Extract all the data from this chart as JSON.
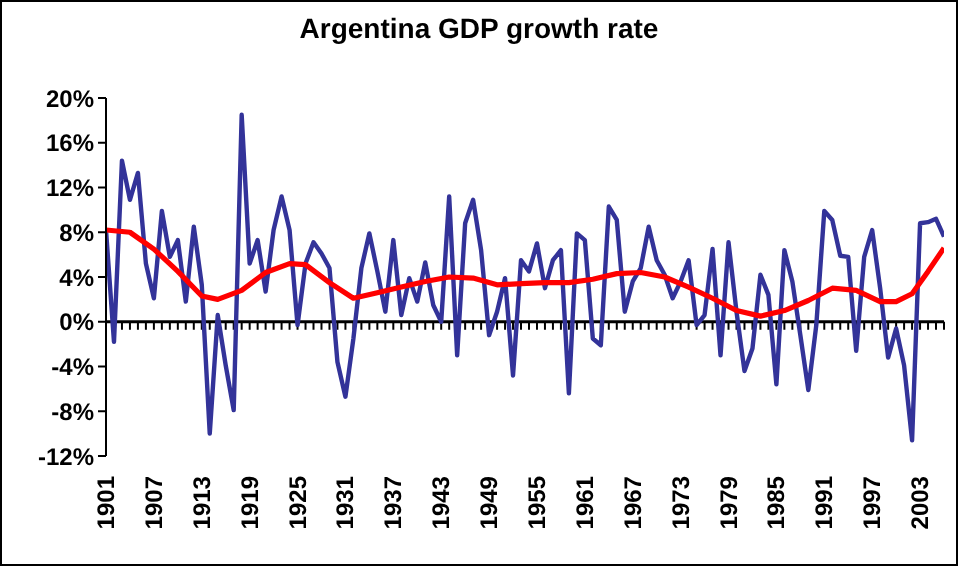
{
  "chart_data": {
    "type": "line",
    "title": "Argentina GDP growth rate",
    "x": [
      1901,
      1902,
      1903,
      1904,
      1905,
      1906,
      1907,
      1908,
      1909,
      1910,
      1911,
      1912,
      1913,
      1914,
      1915,
      1916,
      1917,
      1918,
      1919,
      1920,
      1921,
      1922,
      1923,
      1924,
      1925,
      1926,
      1927,
      1928,
      1929,
      1930,
      1931,
      1932,
      1933,
      1934,
      1935,
      1936,
      1937,
      1938,
      1939,
      1940,
      1941,
      1942,
      1943,
      1944,
      1945,
      1946,
      1947,
      1948,
      1949,
      1950,
      1951,
      1952,
      1953,
      1954,
      1955,
      1956,
      1957,
      1958,
      1959,
      1960,
      1961,
      1962,
      1963,
      1964,
      1965,
      1966,
      1967,
      1968,
      1969,
      1970,
      1971,
      1972,
      1973,
      1974,
      1975,
      1976,
      1977,
      1978,
      1979,
      1980,
      1981,
      1982,
      1983,
      1984,
      1985,
      1986,
      1987,
      1988,
      1989,
      1990,
      1991,
      1992,
      1993,
      1994,
      1995,
      1996,
      1997,
      1998,
      1999,
      2000,
      2001,
      2002,
      2003,
      2004,
      2005,
      2006
    ],
    "series": [
      {
        "color": "#333399",
        "values": [
          8.2,
          -1.8,
          14.4,
          10.9,
          13.3,
          5.2,
          2.1,
          9.9,
          5.8,
          7.3,
          1.8,
          8.5,
          3.3,
          -10,
          0.6,
          -3.9,
          -7.9,
          18.5,
          5.2,
          7.3,
          2.7,
          8.2,
          11.2,
          8.2,
          -0.3,
          5.2,
          7.1,
          6.1,
          4.8,
          -3.6,
          -6.7,
          -1.5,
          4.8,
          7.9,
          4.5,
          0.9,
          7.3,
          0.6,
          3.9,
          1.8,
          5.3,
          1.5,
          0,
          11.2,
          -3,
          8.8,
          10.9,
          6.4,
          -1.2,
          0.9,
          3.9,
          -4.8,
          5.5,
          4.5,
          7,
          3,
          5.5,
          6.4,
          -6.4,
          7.9,
          7.3,
          -1.5,
          -2.1,
          10.3,
          9.1,
          0.9,
          3.6,
          4.8,
          8.5,
          5.5,
          4.2,
          2.1,
          3.6,
          5.5,
          -0.3,
          0.6,
          6.5,
          -3,
          7.1,
          0.9,
          -4.4,
          -2.4,
          4.2,
          2.4,
          -5.6,
          6.4,
          3.6,
          -1.2,
          -6.1,
          -0.3,
          9.9,
          9.1,
          5.9,
          5.8,
          -2.6,
          5.8,
          8.2,
          3,
          -3.2,
          -0.6,
          -3.9,
          -10.6,
          8.8,
          8.9,
          9.2,
          7.6
        ]
      },
      {
        "type": "line",
        "color": "#ff0000",
        "x": [
          1901,
          1904,
          1907,
          1910,
          1913,
          1915,
          1918,
          1921,
          1924,
          1926,
          1929,
          1932,
          1935,
          1938,
          1941,
          1944,
          1947,
          1950,
          1953,
          1956,
          1959,
          1962,
          1965,
          1968,
          1971,
          1974,
          1977,
          1980,
          1983,
          1986,
          1989,
          1992,
          1995,
          1998,
          2000,
          2002,
          2004,
          2006
        ],
        "values": [
          8.2,
          8,
          6.5,
          4.5,
          2.3,
          2,
          2.8,
          4.4,
          5.2,
          5.1,
          3.5,
          2.1,
          2.6,
          3.1,
          3.6,
          4,
          3.9,
          3.3,
          3.4,
          3.5,
          3.5,
          3.8,
          4.3,
          4.4,
          4,
          3.1,
          2.1,
          1,
          0.5,
          1,
          1.9,
          3,
          2.8,
          1.8,
          1.8,
          2.5,
          4.5,
          6.6
        ]
      }
    ],
    "xlim": [
      1901,
      2006
    ],
    "xticks": [
      1901,
      1907,
      1913,
      1919,
      1925,
      1931,
      1937,
      1943,
      1949,
      1955,
      1961,
      1967,
      1973,
      1979,
      1985,
      1991,
      1997,
      2003
    ],
    "ylim": [
      -12,
      20
    ],
    "yticks": [
      {
        "value": -12,
        "label": "-12%"
      },
      {
        "value": -8,
        "label": "-8%"
      },
      {
        "value": -4,
        "label": "-4%"
      },
      {
        "value": 0,
        "label": "0%"
      },
      {
        "value": 4,
        "label": "4%"
      },
      {
        "value": 8,
        "label": "8%"
      },
      {
        "value": 12,
        "label": "12%"
      },
      {
        "value": 16,
        "label": "16%"
      },
      {
        "value": 20,
        "label": "20%"
      }
    ],
    "marker": "none",
    "line_style": "solid",
    "legend": false
  }
}
